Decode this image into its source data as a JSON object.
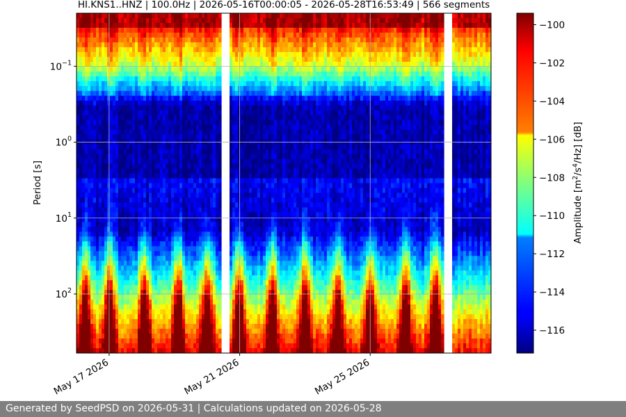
{
  "chart_data": {
    "type": "heatmap",
    "title": "HI.KNS1..HNZ | 100.0Hz | 2026-05-16T00:00:05 - 2026-05-28T16:53:49 | 566 segments",
    "ylabel": "Period [s]",
    "y_scale": "log",
    "y_inverted": true,
    "y_range": [
      0.02,
      600
    ],
    "y_ticks": [
      {
        "value": 0.1,
        "base": "10",
        "exp": "−1"
      },
      {
        "value": 1,
        "base": "10",
        "exp": "0"
      },
      {
        "value": 10,
        "base": "10",
        "exp": "1"
      },
      {
        "value": 100,
        "base": "10",
        "exp": "2"
      }
    ],
    "x_range": [
      "2026-05-16T00:00:05",
      "2026-05-28T16:53:49"
    ],
    "x_ticks": [
      {
        "date": "2026-05-17",
        "label": "May 17 2026"
      },
      {
        "date": "2026-05-21",
        "label": "May 21 2026"
      },
      {
        "date": "2026-05-25",
        "label": "May 25 2026"
      }
    ],
    "grid": true,
    "data_gaps": [
      [
        "2026-05-20T10:00:00",
        "2026-05-20T16:00:00"
      ],
      [
        "2026-05-27T06:00:00",
        "2026-05-27T12:00:00"
      ]
    ],
    "high_noise_times": [
      "2026-05-16T06:00:00",
      "2026-05-17T00:00:00",
      "2026-05-18T02:00:00",
      "2026-05-19T03:00:00",
      "2026-05-20T00:00:00",
      "2026-05-21T00:00:00",
      "2026-05-22T00:00:00",
      "2026-05-23T00:00:00",
      "2026-05-24T00:00:00",
      "2026-05-25T00:00:00",
      "2026-05-26T02:00:00",
      "2026-05-27T00:00:00"
    ],
    "colorbar": {
      "label_prefix": "Amplitude [m",
      "label_sup1": "2",
      "label_mid": "/s",
      "label_sup2": "4",
      "label_suffix": "/Hz] [dB]",
      "vmin": -117.2,
      "vmax": -99.4,
      "ticks": [
        "−100",
        "−102",
        "−104",
        "−106",
        "−108",
        "−110",
        "−112",
        "−114",
        "−116"
      ],
      "tick_values": [
        -100,
        -102,
        -104,
        -106,
        -108,
        -110,
        -112,
        -114,
        -116
      ],
      "colormap": "jet"
    }
  },
  "footer": {
    "text": "Generated by SeedPSD on 2026-05-31 | Calculations updated on 2026-05-28"
  },
  "colors": {
    "gap": "#ffffff",
    "grid": "#b0b0b0",
    "footer_bg": "#7f7f7f",
    "footer_text": "#ffffff"
  }
}
